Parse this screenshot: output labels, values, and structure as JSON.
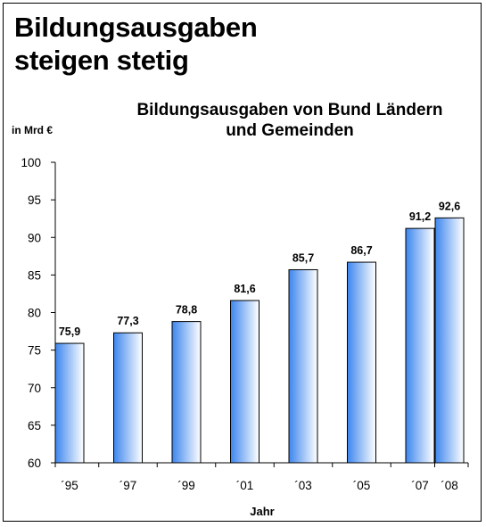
{
  "headline": {
    "line1": "Bildungsausgaben",
    "line2": "steigen stetig"
  },
  "chart_data": {
    "type": "bar",
    "title_line1": "Bildungsausgaben von Bund Ländern",
    "title_line2": "und Gemeinden",
    "ylabel": "in Mrd €",
    "xlabel": "Jahr",
    "categories": [
      "´95",
      "´97",
      "´99",
      "´01",
      "´03",
      "´05",
      "´07",
      "´08"
    ],
    "values": [
      75.9,
      77.3,
      78.8,
      81.6,
      85.7,
      86.7,
      91.2,
      92.6
    ],
    "value_labels": [
      "75,9",
      "77,3",
      "78,8",
      "81,6",
      "85,7",
      "86,7",
      "91,2",
      "92,6"
    ],
    "ylim": [
      60,
      100
    ],
    "yticks": [
      60,
      65,
      70,
      75,
      80,
      85,
      90,
      95,
      100
    ],
    "grid": false,
    "bar_gradient": [
      "#3d86ee",
      "#ffffff"
    ]
  }
}
